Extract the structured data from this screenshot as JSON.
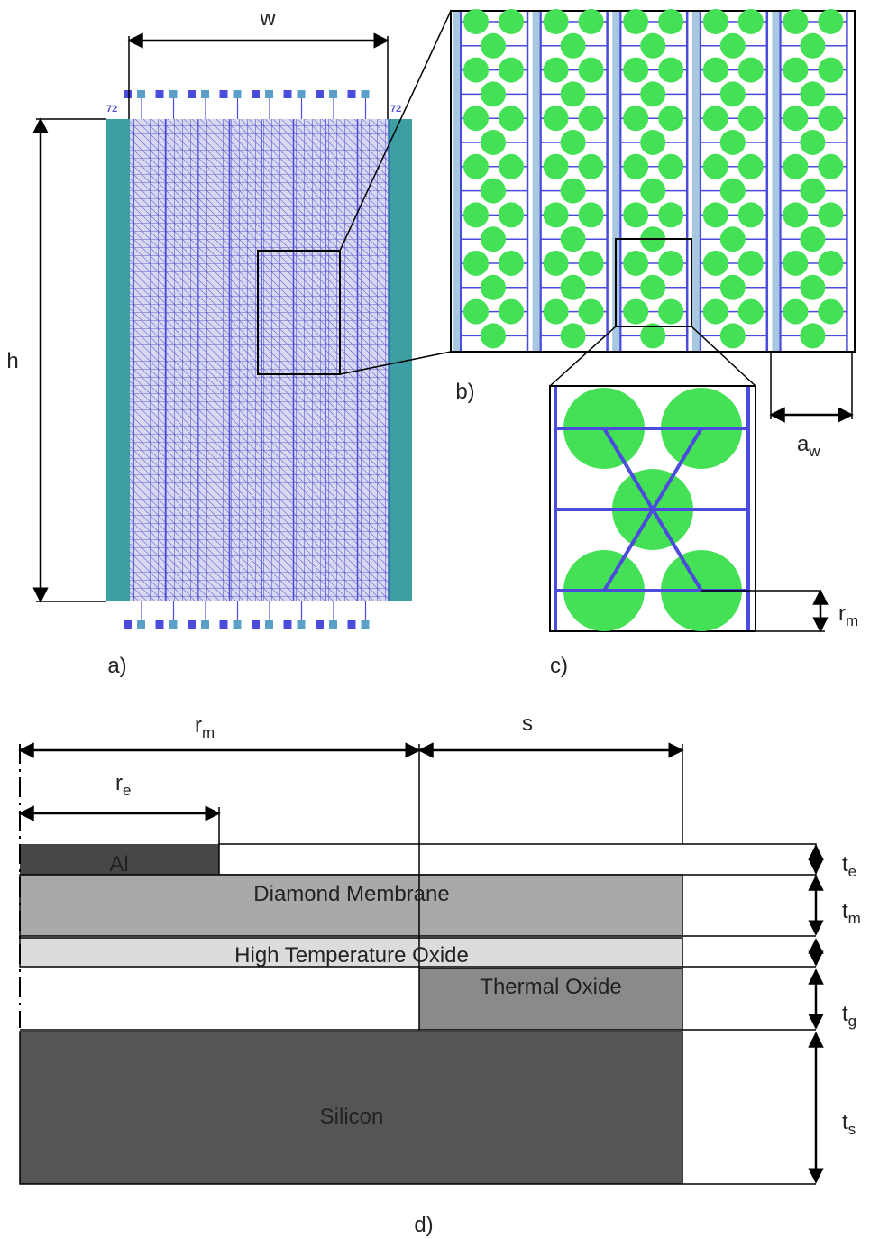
{
  "panel_a": {
    "label": "a)",
    "width_label": "w",
    "height_label": "h",
    "pad_numbers": [
      "72",
      "72"
    ]
  },
  "panel_b": {
    "label": "b)",
    "dimension": {
      "base": "a",
      "sub": "w"
    }
  },
  "panel_c": {
    "label": "c)",
    "dimension": {
      "base": "r",
      "sub": "m"
    }
  },
  "panel_d": {
    "label": "d)",
    "dimensions": [
      {
        "base": "r",
        "sub": "m"
      },
      {
        "base": "s"
      },
      {
        "base": "r",
        "sub": "e"
      }
    ],
    "layers": [
      "Al",
      "Diamond Membrane",
      "High Temperature Oxide",
      "Thermal Oxide",
      "Silicon"
    ],
    "thicknesses": [
      {
        "base": "t",
        "sub": "e"
      },
      {
        "base": "t",
        "sub": "m"
      },
      {
        "base": "t",
        "sub": "g"
      },
      {
        "base": "t",
        "sub": "s"
      }
    ]
  }
}
